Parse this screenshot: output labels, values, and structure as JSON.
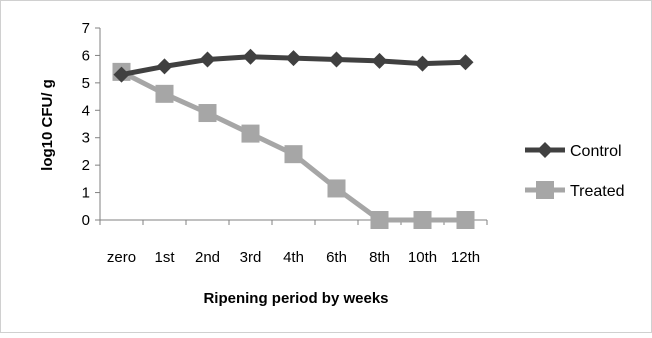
{
  "colors": {
    "control": "#404040",
    "treated": "#a6a6a6",
    "axis": "#808080",
    "border": "#d0d0d0"
  },
  "chart_data": {
    "type": "line",
    "title": "",
    "xlabel": "Ripening period by weeks",
    "ylabel": "log10 CFU/ g",
    "categories": [
      "zero",
      "1st",
      "2nd",
      "3rd",
      "4th",
      "6th",
      "8th",
      "10th",
      "12th"
    ],
    "ylim": [
      0,
      7
    ],
    "yticks": [
      0,
      1,
      2,
      3,
      4,
      5,
      6,
      7
    ],
    "grid": false,
    "legend": "right",
    "series": [
      {
        "name": "Control",
        "marker": "diamond",
        "color": "#404040",
        "values": [
          5.3,
          5.6,
          5.85,
          5.95,
          5.9,
          5.85,
          5.8,
          5.7,
          5.75
        ]
      },
      {
        "name": "Treated",
        "marker": "square",
        "color": "#a6a6a6",
        "values": [
          5.4,
          4.6,
          3.9,
          3.15,
          2.4,
          1.15,
          0,
          0,
          0
        ]
      }
    ]
  }
}
